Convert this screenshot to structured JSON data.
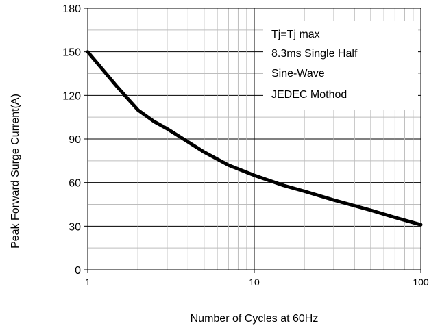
{
  "chart_data": {
    "type": "line",
    "xscale": "log",
    "xlim": [
      1,
      100
    ],
    "ylim": [
      0,
      180
    ],
    "xticks": [
      "1",
      "10",
      "100"
    ],
    "yticks": [
      "0",
      "30",
      "60",
      "90",
      "120",
      "150",
      "180"
    ],
    "xlabel": "Number of Cycles at 60Hz",
    "ylabel": "Peak Forward Surge Current(A)",
    "grid": true,
    "series": [
      {
        "x": [
          1,
          1.5,
          2,
          2.5,
          3,
          4,
          5,
          7,
          10,
          15,
          20,
          30,
          50,
          70,
          100
        ],
        "y": [
          150,
          126,
          110,
          102,
          97,
          88,
          81,
          72,
          65,
          58,
          54,
          48,
          41,
          36,
          31
        ],
        "color": "#000000"
      }
    ],
    "annotation": [
      "Tj=Tj max",
      "8.3ms Single Half",
      "Sine-Wave",
      "JEDEC Mothod"
    ]
  }
}
